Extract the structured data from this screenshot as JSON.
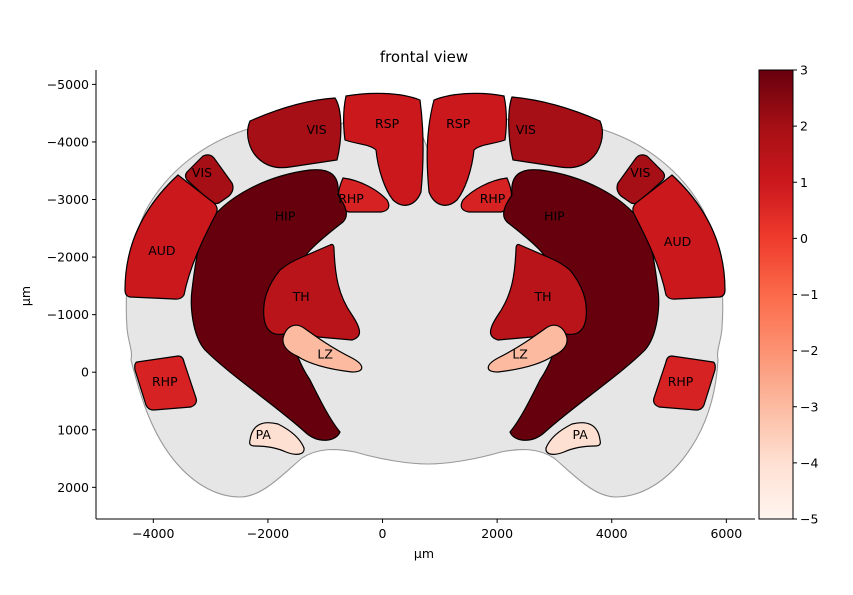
{
  "title": "frontal view",
  "xlabel": "µm",
  "ylabel": "µm",
  "chart_data": {
    "type": "heatmap",
    "title": "frontal view",
    "xlabel": "µm",
    "ylabel": "µm",
    "xlim": [
      -5000,
      6500
    ],
    "ylim": [
      2550,
      -5250
    ],
    "x_ticks": [
      -4000,
      -2000,
      0,
      2000,
      4000,
      6000
    ],
    "y_ticks": [
      -5000,
      -4000,
      -3000,
      -2000,
      -1000,
      0,
      1000,
      2000
    ],
    "x_tick_labels": [
      "−4000",
      "−2000",
      "0",
      "2000",
      "4000",
      "6000"
    ],
    "y_tick_labels": [
      "−5000",
      "−4000",
      "−3000",
      "−2000",
      "−1000",
      "0",
      "1000",
      "2000"
    ],
    "colorbar": {
      "cmap": "Reds",
      "range": [
        -5,
        3
      ],
      "ticks": [
        -5,
        -4,
        -3,
        -2,
        -1,
        0,
        1,
        2,
        3
      ],
      "tick_labels": [
        "−5",
        "−4",
        "−3",
        "−2",
        "−1",
        "0",
        "1",
        "2",
        "3"
      ]
    },
    "regions": [
      {
        "label": "VIS",
        "side": "left",
        "value": 2.0,
        "x": -1150,
        "y": -4200
      },
      {
        "label": "VIS",
        "side": "right",
        "value": 2.0,
        "x": 2500,
        "y": -4200
      },
      {
        "label": "RSP",
        "side": "left",
        "value": 1.0,
        "x": 80,
        "y": -4300
      },
      {
        "label": "RSP",
        "side": "right",
        "value": 1.0,
        "x": 1320,
        "y": -4300
      },
      {
        "label": "VIS",
        "side": "left",
        "value": 2.0,
        "x": -3150,
        "y": -3450
      },
      {
        "label": "VIS",
        "side": "right",
        "value": 2.0,
        "x": 4500,
        "y": -3450
      },
      {
        "label": "RHP",
        "side": "left",
        "value": 0.7,
        "x": -550,
        "y": -3000
      },
      {
        "label": "RHP",
        "side": "right",
        "value": 0.7,
        "x": 1920,
        "y": -3000
      },
      {
        "label": "HIP",
        "side": "left",
        "value": 3.0,
        "x": -1700,
        "y": -2700
      },
      {
        "label": "HIP",
        "side": "right",
        "value": 3.0,
        "x": 3000,
        "y": -2700
      },
      {
        "label": "AUD",
        "side": "left",
        "value": 1.0,
        "x": -3850,
        "y": -2100
      },
      {
        "label": "AUD",
        "side": "right",
        "value": 1.0,
        "x": 5150,
        "y": -2250
      },
      {
        "label": "TH",
        "side": "left",
        "value": 1.5,
        "x": -1420,
        "y": -1300
      },
      {
        "label": "TH",
        "side": "right",
        "value": 1.5,
        "x": 2800,
        "y": -1300
      },
      {
        "label": "LZ",
        "side": "left",
        "value": -3.0,
        "x": -1000,
        "y": -300
      },
      {
        "label": "LZ",
        "side": "right",
        "value": -3.0,
        "x": 2400,
        "y": -300
      },
      {
        "label": "RHP",
        "side": "left",
        "value": 0.7,
        "x": -3800,
        "y": 180
      },
      {
        "label": "RHP",
        "side": "right",
        "value": 0.7,
        "x": 5200,
        "y": 180
      },
      {
        "label": "PA",
        "side": "left",
        "value": -4.0,
        "x": -2080,
        "y": 1100
      },
      {
        "label": "PA",
        "side": "right",
        "value": -4.0,
        "x": 3450,
        "y": 1100
      }
    ]
  }
}
